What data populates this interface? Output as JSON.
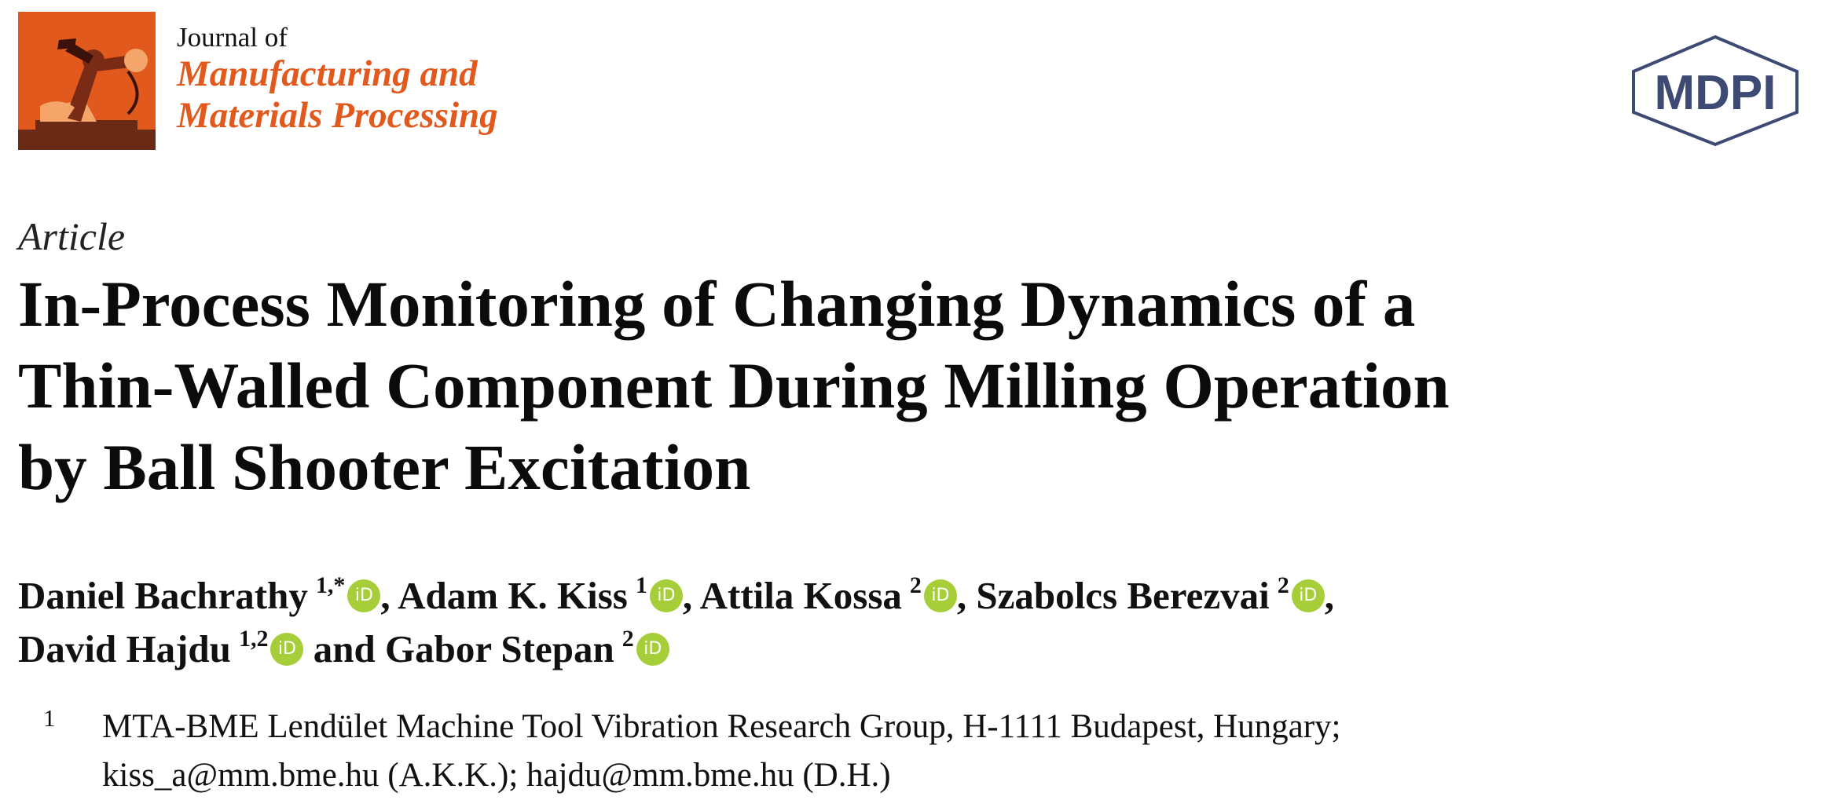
{
  "journal": {
    "prefix": "Journal of",
    "name_line1": "Manufacturing and",
    "name_line2": "Materials Processing",
    "logo_icon": "robot-arm-icon",
    "accent_color": "#e2591e"
  },
  "publisher": {
    "logo_text": "MDPI",
    "logo_color": "#3d4a73"
  },
  "article": {
    "type": "Article",
    "title_lines": [
      "In-Process Monitoring of Changing Dynamics of a",
      "Thin-Walled Component During Milling Operation",
      "by Ball Shooter Excitation"
    ]
  },
  "authors": [
    {
      "name": "Daniel Bachrathy",
      "sup": "1,*",
      "suffix": ","
    },
    {
      "name": "Adam K. Kiss",
      "sup": "1",
      "suffix": ","
    },
    {
      "name": "Attila Kossa",
      "sup": "2",
      "suffix": ","
    },
    {
      "name": "Szabolcs Berezvai",
      "sup": "2",
      "suffix": ","
    },
    {
      "name": "David Hajdu",
      "sup": "1,2",
      "suffix": ""
    },
    {
      "connector": "and"
    },
    {
      "name": "Gabor Stepan",
      "sup": "2",
      "suffix": ""
    }
  ],
  "orcid_label": "iD",
  "orcid_color": "#a6ce39",
  "affiliations": [
    {
      "number": "1",
      "line1": "MTA-BME Lendület Machine Tool Vibration Research Group, H-1111 Budapest, Hungary;",
      "line2": "kiss_a@mm.bme.hu (A.K.K.); hajdu@mm.bme.hu (D.H.)"
    }
  ]
}
